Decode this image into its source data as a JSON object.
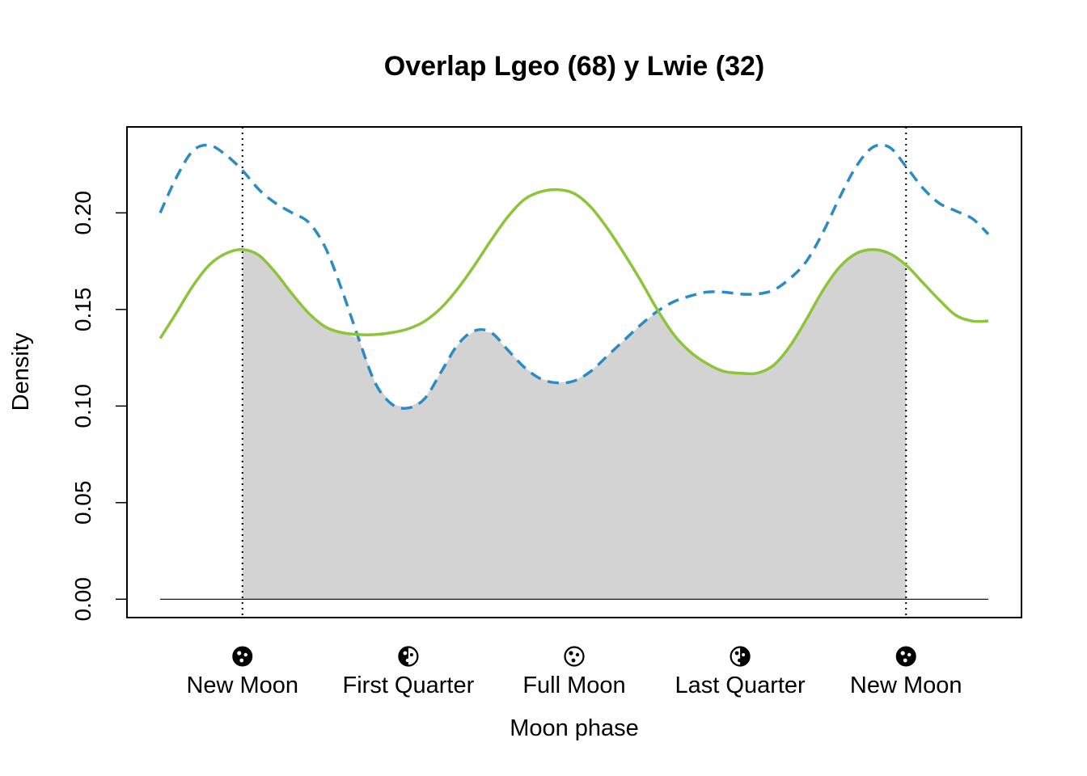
{
  "chart_data": {
    "type": "line",
    "title": "Overlap Lgeo (68) y Lwie (32)",
    "xlabel": "Moon phase",
    "ylabel": "Density",
    "xlim": [
      -0.174,
      1.174
    ],
    "ylim": [
      -0.0095,
      0.2445
    ],
    "yticks": [
      0.0,
      0.05,
      0.1,
      0.15,
      0.2
    ],
    "ytick_labels": [
      "0.00",
      "0.05",
      "0.10",
      "0.15",
      "0.20"
    ],
    "phase_ticks": [
      {
        "x": 0.0,
        "label": "New Moon",
        "icon": "new-moon-icon"
      },
      {
        "x": 0.25,
        "label": "First Quarter",
        "icon": "first-quarter-moon-icon"
      },
      {
        "x": 0.5,
        "label": "Full Moon",
        "icon": "full-moon-icon"
      },
      {
        "x": 0.75,
        "label": "Last Quarter",
        "icon": "last-quarter-moon-icon"
      },
      {
        "x": 1.0,
        "label": "New Moon",
        "icon": "new-moon-icon"
      }
    ],
    "vlines": [
      0.0,
      1.0
    ],
    "baseline_range": [
      -0.124,
      1.124
    ],
    "overlap_fill_range": [
      0.0,
      1.0
    ],
    "series": [
      {
        "style": "dashed",
        "color": "#2B8CC4",
        "x": [
          -0.124,
          -0.1,
          -0.075,
          -0.05,
          -0.025,
          0.0,
          0.025,
          0.05,
          0.075,
          0.1,
          0.125,
          0.15,
          0.175,
          0.2,
          0.225,
          0.25,
          0.275,
          0.3,
          0.325,
          0.35,
          0.375,
          0.4,
          0.425,
          0.45,
          0.475,
          0.5,
          0.525,
          0.55,
          0.575,
          0.6,
          0.625,
          0.65,
          0.675,
          0.7,
          0.725,
          0.75,
          0.775,
          0.8,
          0.825,
          0.85,
          0.875,
          0.9,
          0.925,
          0.95,
          0.975,
          1.0,
          1.025,
          1.05,
          1.075,
          1.1,
          1.124
        ],
        "y": [
          0.2,
          0.218,
          0.232,
          0.235,
          0.23,
          0.222,
          0.212,
          0.205,
          0.2,
          0.195,
          0.182,
          0.16,
          0.135,
          0.112,
          0.101,
          0.099,
          0.104,
          0.118,
          0.132,
          0.139,
          0.138,
          0.129,
          0.12,
          0.114,
          0.112,
          0.113,
          0.118,
          0.126,
          0.134,
          0.142,
          0.149,
          0.154,
          0.157,
          0.159,
          0.159,
          0.158,
          0.158,
          0.16,
          0.166,
          0.175,
          0.19,
          0.208,
          0.224,
          0.234,
          0.234,
          0.224,
          0.213,
          0.205,
          0.201,
          0.197,
          0.189
        ]
      },
      {
        "style": "solid",
        "color": "#8CC43A",
        "x": [
          -0.124,
          -0.1,
          -0.075,
          -0.05,
          -0.025,
          0.0,
          0.025,
          0.05,
          0.075,
          0.1,
          0.125,
          0.15,
          0.175,
          0.2,
          0.225,
          0.25,
          0.275,
          0.3,
          0.325,
          0.35,
          0.375,
          0.4,
          0.425,
          0.45,
          0.475,
          0.5,
          0.525,
          0.55,
          0.575,
          0.6,
          0.625,
          0.65,
          0.675,
          0.7,
          0.725,
          0.75,
          0.775,
          0.8,
          0.825,
          0.85,
          0.875,
          0.9,
          0.925,
          0.95,
          0.975,
          1.0,
          1.025,
          1.05,
          1.075,
          1.1,
          1.124
        ],
        "y": [
          0.135,
          0.148,
          0.162,
          0.173,
          0.179,
          0.181,
          0.178,
          0.169,
          0.158,
          0.148,
          0.141,
          0.138,
          0.137,
          0.137,
          0.138,
          0.14,
          0.144,
          0.151,
          0.161,
          0.173,
          0.186,
          0.198,
          0.207,
          0.211,
          0.212,
          0.21,
          0.203,
          0.192,
          0.179,
          0.165,
          0.15,
          0.137,
          0.128,
          0.122,
          0.118,
          0.117,
          0.117,
          0.121,
          0.131,
          0.145,
          0.16,
          0.172,
          0.179,
          0.181,
          0.179,
          0.173,
          0.164,
          0.155,
          0.147,
          0.144,
          0.144
        ]
      }
    ],
    "colors": {
      "overlap_fill": "#D3D3D3",
      "frame": "#000000"
    }
  }
}
